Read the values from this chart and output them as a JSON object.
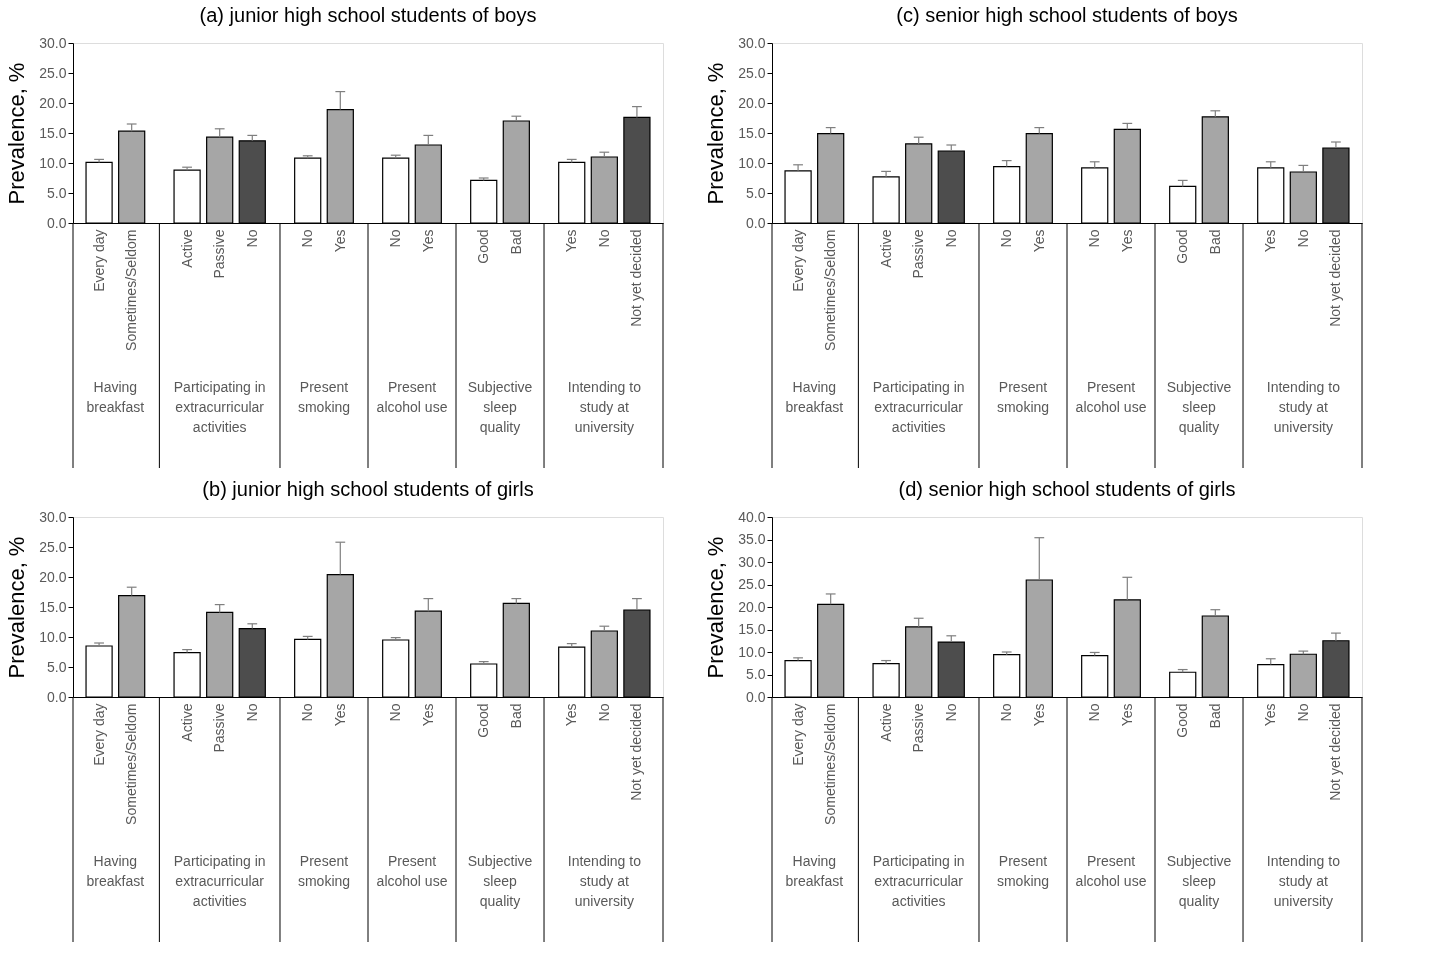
{
  "chart_data": [
    {
      "type": "bar",
      "title": "(a) junior high school students of boys",
      "legend": false,
      "ylabel": "Prevalence, %",
      "categories": [
        "Every day",
        "Sometimes/Seldom",
        "Active",
        "Passive",
        "No",
        "No",
        "Yes",
        "No",
        "Yes",
        "Good",
        "Bad",
        "Yes",
        "No",
        "Not yet decided"
      ],
      "ylim": [
        0,
        30
      ],
      "yticks": [
        {
          "value": 0,
          "label": "0.0"
        },
        {
          "value": 5,
          "label": "5.0"
        },
        {
          "value": 10,
          "label": "10.0"
        },
        {
          "value": 15,
          "label": "15.0"
        },
        {
          "value": 20,
          "label": "20.0"
        },
        {
          "value": 25,
          "label": "25.0"
        },
        {
          "value": 30,
          "label": "30.0"
        }
      ],
      "grid": false,
      "annotations": [
        "Having breakfast",
        "Participating in extracurricular activities",
        "Present smoking",
        "Present alcohol use",
        "Subjective sleep quality",
        "Intending to study at university"
      ],
      "series": [
        {
          "color": "#ffffff",
          "values": [
            10.1,
            null,
            8.8,
            null,
            null,
            10.8,
            null,
            10.8,
            null,
            7.1,
            null,
            10.1,
            null,
            null
          ],
          "errors": [
            [
              10.1,
              10.6
            ],
            null,
            [
              8.8,
              9.3
            ],
            null,
            null,
            [
              10.8,
              11.2
            ],
            null,
            [
              10.8,
              11.3
            ],
            null,
            [
              7.1,
              7.5
            ],
            null,
            [
              10.1,
              10.6
            ],
            null,
            null
          ]
        },
        {
          "color": "#a6a6a6",
          "values": [
            null,
            15.3,
            null,
            14.3,
            null,
            null,
            18.9,
            null,
            13.0,
            null,
            17.0,
            null,
            11.0,
            null
          ],
          "errors": [
            null,
            [
              15.3,
              16.5
            ],
            null,
            [
              14.3,
              15.7
            ],
            null,
            null,
            [
              18.9,
              21.9
            ],
            null,
            [
              13.0,
              14.6
            ],
            null,
            [
              17.0,
              17.8
            ],
            null,
            [
              11.0,
              11.8
            ],
            null
          ]
        },
        {
          "color": "#4d4d4d",
          "values": [
            null,
            null,
            null,
            null,
            13.7,
            null,
            null,
            null,
            null,
            null,
            null,
            null,
            null,
            17.6
          ],
          "errors": [
            null,
            null,
            null,
            null,
            [
              13.7,
              14.6
            ],
            null,
            null,
            null,
            null,
            null,
            null,
            null,
            null,
            [
              17.6,
              19.4
            ]
          ]
        }
      ]
    },
    {
      "type": "bar",
      "title": "(c) senior high school students of boys",
      "legend": false,
      "ylabel": "Prevalence, %",
      "categories": [
        "Every day",
        "Sometimes/Seldom",
        "Active",
        "Passive",
        "No",
        "No",
        "Yes",
        "No",
        "Yes",
        "Good",
        "Bad",
        "Yes",
        "No",
        "Not yet decided"
      ],
      "ylim": [
        0,
        30
      ],
      "yticks": [
        {
          "value": 0,
          "label": "0.0"
        },
        {
          "value": 5,
          "label": "5.0"
        },
        {
          "value": 10,
          "label": "10.0"
        },
        {
          "value": 15,
          "label": "15.0"
        },
        {
          "value": 20,
          "label": "20.0"
        },
        {
          "value": 25,
          "label": "25.0"
        },
        {
          "value": 30,
          "label": "30.0"
        }
      ],
      "grid": false,
      "annotations": [
        "Having breakfast",
        "Participating in extracurricular activities",
        "Present smoking",
        "Present alcohol use",
        "Subjective sleep quality",
        "Intending to study at university"
      ],
      "series": [
        {
          "color": "#ffffff",
          "values": [
            8.7,
            null,
            7.7,
            null,
            null,
            9.4,
            null,
            9.2,
            null,
            6.1,
            null,
            9.2,
            null,
            null
          ],
          "errors": [
            [
              8.7,
              9.7
            ],
            null,
            [
              7.7,
              8.6
            ],
            null,
            null,
            [
              9.4,
              10.4
            ],
            null,
            [
              9.2,
              10.2
            ],
            null,
            [
              6.1,
              7.1
            ],
            null,
            [
              9.2,
              10.2
            ],
            null,
            null
          ]
        },
        {
          "color": "#a6a6a6",
          "values": [
            null,
            14.9,
            null,
            13.2,
            null,
            null,
            14.9,
            null,
            15.6,
            null,
            17.7,
            null,
            8.5,
            null
          ],
          "errors": [
            null,
            [
              14.9,
              15.9
            ],
            null,
            [
              13.2,
              14.3
            ],
            null,
            null,
            [
              14.9,
              15.9
            ],
            null,
            [
              15.6,
              16.6
            ],
            null,
            [
              17.7,
              18.7
            ],
            null,
            [
              8.5,
              9.6
            ],
            null
          ]
        },
        {
          "color": "#4d4d4d",
          "values": [
            null,
            null,
            null,
            null,
            12.0,
            null,
            null,
            null,
            null,
            null,
            null,
            null,
            null,
            12.5
          ],
          "errors": [
            null,
            null,
            null,
            null,
            [
              12.0,
              13.0
            ],
            null,
            null,
            null,
            null,
            null,
            null,
            null,
            null,
            [
              12.5,
              13.5
            ]
          ]
        }
      ]
    },
    {
      "type": "bar",
      "title": "(b) junior high school students of girls",
      "legend": false,
      "ylabel": "Prevalence, %",
      "categories": [
        "Every day",
        "Sometimes/Seldom",
        "Active",
        "Passive",
        "No",
        "No",
        "Yes",
        "No",
        "Yes",
        "Good",
        "Bad",
        "Yes",
        "No",
        "Not yet decided"
      ],
      "ylim": [
        0,
        30
      ],
      "yticks": [
        {
          "value": 0,
          "label": "0.0"
        },
        {
          "value": 5,
          "label": "5.0"
        },
        {
          "value": 10,
          "label": "10.0"
        },
        {
          "value": 15,
          "label": "15.0"
        },
        {
          "value": 20,
          "label": "20.0"
        },
        {
          "value": 25,
          "label": "25.0"
        },
        {
          "value": 30,
          "label": "30.0"
        }
      ],
      "grid": false,
      "annotations": [
        "Having breakfast",
        "Participating in extracurricular activities",
        "Present smoking",
        "Present alcohol use",
        "Subjective sleep quality",
        "Intending to study at university"
      ],
      "series": [
        {
          "color": "#ffffff",
          "values": [
            8.5,
            null,
            7.4,
            null,
            null,
            9.6,
            null,
            9.5,
            null,
            5.5,
            null,
            8.3,
            null,
            null
          ],
          "errors": [
            [
              8.5,
              9.0
            ],
            null,
            [
              7.4,
              7.9
            ],
            null,
            null,
            [
              9.6,
              10.1
            ],
            null,
            [
              9.5,
              9.9
            ],
            null,
            [
              5.5,
              5.9
            ],
            null,
            [
              8.3,
              8.9
            ],
            null,
            null
          ]
        },
        {
          "color": "#a6a6a6",
          "values": [
            null,
            16.9,
            null,
            14.1,
            null,
            null,
            20.4,
            null,
            14.3,
            null,
            15.6,
            null,
            11.0,
            null
          ],
          "errors": [
            null,
            [
              16.9,
              18.3
            ],
            null,
            [
              14.1,
              15.4
            ],
            null,
            null,
            [
              20.4,
              25.8
            ],
            null,
            [
              14.3,
              16.4
            ],
            null,
            [
              15.6,
              16.4
            ],
            null,
            [
              11.0,
              11.8
            ],
            null
          ]
        },
        {
          "color": "#4d4d4d",
          "values": [
            null,
            null,
            null,
            null,
            11.4,
            null,
            null,
            null,
            null,
            null,
            null,
            null,
            null,
            14.5
          ],
          "errors": [
            null,
            null,
            null,
            null,
            [
              11.4,
              12.2
            ],
            null,
            null,
            null,
            null,
            null,
            null,
            null,
            null,
            [
              14.5,
              16.4
            ]
          ]
        }
      ]
    },
    {
      "type": "bar",
      "title": "(d) senior high school students of girls",
      "legend": false,
      "ylabel": "Prevalence, %",
      "categories": [
        "Every day",
        "Sometimes/Seldom",
        "Active",
        "Passive",
        "No",
        "No",
        "Yes",
        "No",
        "Yes",
        "Good",
        "Bad",
        "Yes",
        "No",
        "Not yet decided"
      ],
      "ylim": [
        0,
        40
      ],
      "yticks": [
        {
          "value": 0,
          "label": "0.0"
        },
        {
          "value": 5,
          "label": "5.0"
        },
        {
          "value": 10,
          "label": "10.0"
        },
        {
          "value": 15,
          "label": "15.0"
        },
        {
          "value": 20,
          "label": "20.0"
        },
        {
          "value": 25,
          "label": "25.0"
        },
        {
          "value": 30,
          "label": "30.0"
        },
        {
          "value": 35,
          "label": "35.0"
        },
        {
          "value": 40,
          "label": "40.0"
        }
      ],
      "grid": false,
      "annotations": [
        "Having breakfast",
        "Participating in extracurricular activities",
        "Present smoking",
        "Present alcohol use",
        "Subjective sleep quality",
        "Intending to study at university"
      ],
      "series": [
        {
          "color": "#ffffff",
          "values": [
            8.1,
            null,
            7.4,
            null,
            null,
            9.4,
            null,
            9.2,
            null,
            5.5,
            null,
            7.2,
            null,
            null
          ],
          "errors": [
            [
              8.1,
              8.7
            ],
            null,
            [
              7.4,
              8.1
            ],
            null,
            null,
            [
              9.4,
              10.0
            ],
            null,
            [
              9.2,
              9.9
            ],
            null,
            [
              5.5,
              6.1
            ],
            null,
            [
              7.2,
              8.5
            ],
            null,
            null
          ]
        },
        {
          "color": "#a6a6a6",
          "values": [
            null,
            20.6,
            null,
            15.6,
            null,
            null,
            26.0,
            null,
            21.6,
            null,
            18.0,
            null,
            9.5,
            null
          ],
          "errors": [
            null,
            [
              20.6,
              22.9
            ],
            null,
            [
              15.6,
              17.5
            ],
            null,
            null,
            [
              26.0,
              35.4
            ],
            null,
            [
              21.6,
              26.6
            ],
            null,
            [
              18.0,
              19.4
            ],
            null,
            [
              9.5,
              10.2
            ],
            null
          ]
        },
        {
          "color": "#4d4d4d",
          "values": [
            null,
            null,
            null,
            null,
            12.2,
            null,
            null,
            null,
            null,
            null,
            null,
            null,
            null,
            12.5
          ],
          "errors": [
            null,
            null,
            null,
            null,
            [
              12.2,
              13.6
            ],
            null,
            null,
            null,
            null,
            null,
            null,
            null,
            null,
            [
              12.5,
              14.2
            ]
          ]
        }
      ]
    }
  ]
}
